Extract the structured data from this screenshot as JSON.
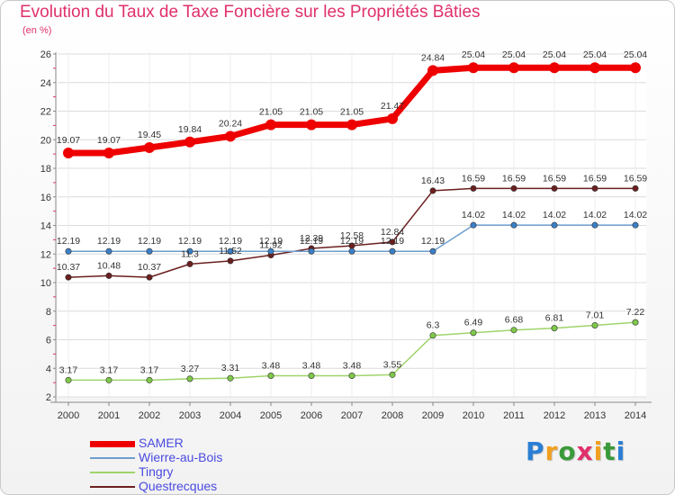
{
  "page": {
    "title": "Evolution du Taux de Taxe Foncière sur les Propriétés Bâties",
    "subtitle": "(en %)",
    "brand": "Proxiti"
  },
  "chart_data": {
    "type": "line",
    "title": "Evolution du Taux de Taxe Foncière sur les Propriétés Bâties",
    "ylabel": "(en %)",
    "xlabel": "",
    "x": [
      "2000",
      "2001",
      "2002",
      "2003",
      "2004",
      "2005",
      "2006",
      "2007",
      "2008",
      "2009",
      "2010",
      "2011",
      "2012",
      "2013",
      "2014"
    ],
    "ylim": [
      2,
      26
    ],
    "yticks": [
      2,
      4,
      6,
      8,
      10,
      12,
      14,
      16,
      18,
      20,
      22,
      24,
      26
    ],
    "grid": true,
    "legend_position": "bottom-left",
    "series": [
      {
        "name": "SAMER",
        "color": "#ee0000",
        "marker": "#ee0000",
        "width": 7,
        "r": 6,
        "values": [
          19.07,
          19.07,
          19.45,
          19.84,
          20.24,
          21.05,
          21.05,
          21.05,
          21.47,
          24.84,
          25.04,
          25.04,
          25.04,
          25.04,
          25.04
        ],
        "labels": [
          "19.07",
          "19.07",
          "19.45",
          "19.84",
          "20.24",
          "21.05",
          "21.05",
          "21.05",
          "21.47",
          "24.84",
          "25.04",
          "25.04",
          "25.04",
          "25.04",
          "25.04"
        ]
      },
      {
        "name": "Wierre-au-Bois",
        "color": "#6e9fcf",
        "marker": "#3b7fc6",
        "width": 1.5,
        "r": 3.2,
        "values": [
          12.19,
          12.19,
          12.19,
          12.19,
          12.19,
          12.19,
          12.19,
          12.19,
          12.19,
          12.19,
          14.02,
          14.02,
          14.02,
          14.02,
          14.02
        ],
        "labels": [
          "12.19",
          "12.19",
          "12.19",
          "12.19",
          "12.19",
          "12.19",
          "12.19",
          "12.19",
          "12.19",
          "12.19",
          "14.02",
          "14.02",
          "14.02",
          "14.02",
          "14.02"
        ]
      },
      {
        "name": "Tingry",
        "color": "#9fd46a",
        "marker": "#7ec84a",
        "width": 1.5,
        "r": 3.2,
        "values": [
          3.17,
          3.17,
          3.17,
          3.27,
          3.31,
          3.48,
          3.48,
          3.48,
          3.55,
          6.3,
          6.49,
          6.68,
          6.81,
          7.01,
          7.22
        ],
        "labels": [
          "3.17",
          "3.17",
          "3.17",
          "3.27",
          "3.31",
          "3.48",
          "3.48",
          "3.48",
          "3.55",
          "6.3",
          "6.49",
          "6.68",
          "6.81",
          "7.01",
          "7.22"
        ]
      },
      {
        "name": "Questrecques",
        "color": "#6b1f1f",
        "marker": "#6b1f1f",
        "width": 1.5,
        "r": 3.2,
        "values": [
          10.37,
          10.48,
          10.37,
          11.3,
          11.52,
          11.92,
          12.39,
          12.58,
          12.84,
          16.43,
          16.59,
          16.59,
          16.59,
          16.59,
          16.59
        ],
        "labels": [
          "10.37",
          "10.48",
          "10.37",
          "11.3",
          "11.52",
          "11.92",
          "12.39",
          "12.58",
          "12.84",
          "16.43",
          "16.59",
          "16.59",
          "16.59",
          "16.59",
          "16.59"
        ]
      }
    ]
  }
}
